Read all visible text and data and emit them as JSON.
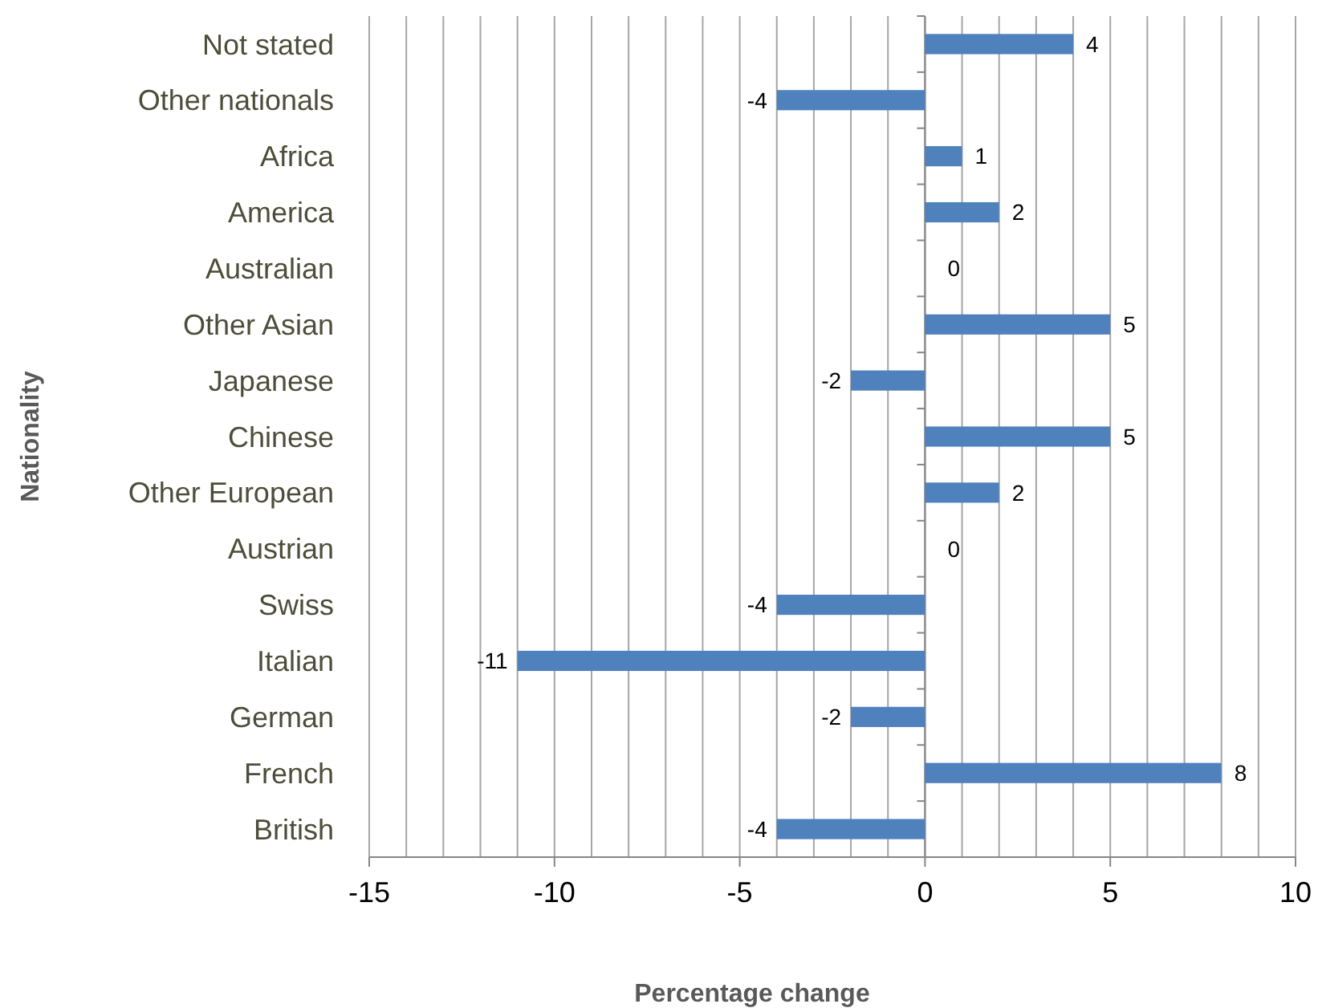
{
  "chart_data": {
    "type": "bar",
    "orientation": "horizontal",
    "xlabel": "Percentage change",
    "ylabel": "Nationality",
    "categories": [
      "Not stated",
      "Other nationals",
      "Africa",
      "America",
      "Australian",
      "Other Asian",
      "Japanese",
      "Chinese",
      "Other European",
      "Austrian",
      "Swiss",
      "Italian",
      "German",
      "French",
      "British"
    ],
    "values": [
      4,
      -4,
      1,
      2,
      0,
      5,
      -2,
      5,
      2,
      0,
      -4,
      -11,
      -2,
      8,
      -4
    ],
    "color": "#4f81bd",
    "data_labels": true,
    "grid": "x",
    "xlim": [
      -15,
      10
    ],
    "xticks": [
      -15,
      {
        "value": -14,
        "label": null
      },
      {
        "value": -13,
        "label": null
      },
      {
        "value": -12,
        "label": null
      },
      {
        "value": -11,
        "label": null
      },
      -10,
      {
        "value": -9,
        "label": null
      },
      {
        "value": -8,
        "label": null
      },
      {
        "value": -7,
        "label": null
      },
      {
        "value": -6,
        "label": null
      },
      -5,
      {
        "value": -4,
        "label": null
      },
      {
        "value": -3,
        "label": null
      },
      {
        "value": -2,
        "label": null
      },
      {
        "value": -1,
        "label": null
      },
      0,
      {
        "value": 1,
        "label": null
      },
      {
        "value": 2,
        "label": null
      },
      {
        "value": 3,
        "label": null
      },
      {
        "value": 4,
        "label": null
      },
      5,
      {
        "value": 6,
        "label": null
      },
      {
        "value": 7,
        "label": null
      },
      {
        "value": 8,
        "label": null
      },
      {
        "value": 9,
        "label": null
      },
      10
    ]
  }
}
